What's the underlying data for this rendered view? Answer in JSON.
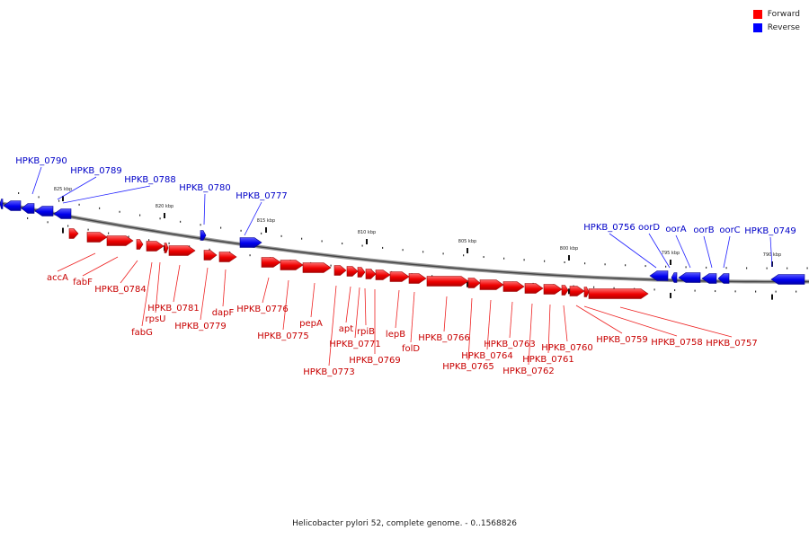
{
  "legend": {
    "forward": {
      "label": "Forward",
      "color": "#ff0000"
    },
    "reverse": {
      "label": "Reverse",
      "color": "#0000ff"
    }
  },
  "caption": "Helicobacter pylori 52, complete genome. - 0..1568826",
  "scale_labels": [
    "825 kbp",
    "820 kbp",
    "815 kbp",
    "810 kbp",
    "805 kbp",
    "800 kbp",
    "795 kbp",
    "790 kbp"
  ],
  "genes_reverse": [
    "HPKB_0790",
    "HPKB_0789",
    "HPKB_0788",
    "HPKB_0780",
    "HPKB_0777",
    "HPKB_0756",
    "oorD",
    "oorA",
    "oorB",
    "oorC",
    "HPKB_0749"
  ],
  "genes_forward": [
    "accA",
    "fabF",
    "HPKB_0784",
    "rpsU",
    "fabG",
    "HPKB_0781",
    "HPKB_0779",
    "dapF",
    "HPKB_0776",
    "HPKB_0775",
    "pepA",
    "HPKB_0773",
    "apt",
    "HPKB_0771",
    "rpiB",
    "HPKB_0769",
    "lepB",
    "folD",
    "HPKB_0766",
    "HPKB_0765",
    "HPKB_0764",
    "HPKB_0763",
    "HPKB_0762",
    "HPKB_0761",
    "HPKB_0760",
    "HPKB_0759",
    "HPKB_0758",
    "HPKB_0757"
  ]
}
